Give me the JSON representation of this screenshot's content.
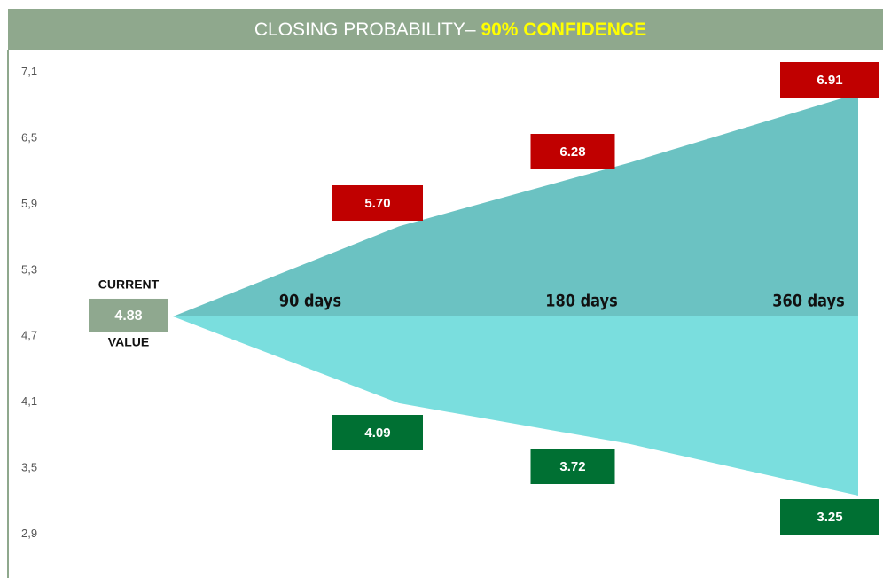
{
  "chart_data": {
    "type": "fan",
    "title": "CLOSING PROBABILITY– ",
    "title_highlight": "90% CONFIDENCE",
    "current": {
      "label_top": "CURRENT",
      "value": 4.88,
      "label_bottom": "VALUE",
      "color": "#8fa88f"
    },
    "categories": [
      "90 days",
      "180 days",
      "360 days"
    ],
    "series": [
      {
        "name": "upper",
        "values": [
          5.7,
          6.28,
          6.91
        ],
        "value_labels": [
          "5.70",
          "6.28",
          "6.91"
        ],
        "color": "#6bc2c2",
        "label_color": "#c00000"
      },
      {
        "name": "lower",
        "values": [
          4.09,
          3.72,
          3.25
        ],
        "value_labels": [
          "4.09",
          "3.72",
          "3.25"
        ],
        "color": "#7adede",
        "label_color": "#007033"
      }
    ],
    "ylim": [
      2.5,
      7.3
    ],
    "yticks": [
      {
        "value": 7.1,
        "label": "7,1"
      },
      {
        "value": 6.5,
        "label": "6,5"
      },
      {
        "value": 5.9,
        "label": "5,9"
      },
      {
        "value": 5.3,
        "label": "5,3"
      },
      {
        "value": 4.7,
        "label": "4,7"
      },
      {
        "value": 4.1,
        "label": "4,1"
      },
      {
        "value": 3.5,
        "label": "3,5"
      },
      {
        "value": 2.9,
        "label": "2,9"
      }
    ]
  }
}
